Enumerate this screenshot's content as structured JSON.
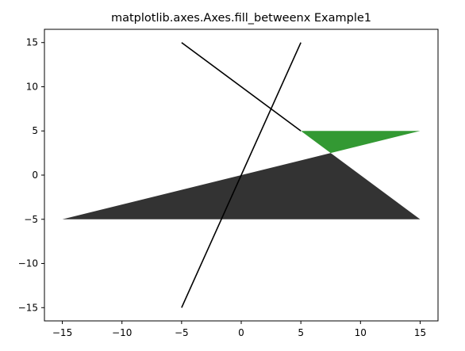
{
  "chart_data": {
    "type": "area",
    "title": "matplotlib.axes.Axes.fill_betweenx Example1",
    "xlabel": "",
    "ylabel": "",
    "xlim": [
      -16.5,
      16.5
    ],
    "ylim": [
      -16.5,
      16.5
    ],
    "grid": false,
    "x_ticks": [
      -15,
      -10,
      -5,
      0,
      5,
      10,
      15
    ],
    "y_ticks": [
      -15,
      -10,
      -5,
      0,
      5,
      10,
      15
    ],
    "x_tick_labels": [
      "−15",
      "−10",
      "−5",
      "0",
      "5",
      "10",
      "15"
    ],
    "y_tick_labels": [
      "−15",
      "−10",
      "−5",
      "0",
      "5",
      "10",
      "15"
    ],
    "lines": [
      {
        "color": "#000000",
        "points": [
          [
            -5,
            -15
          ],
          [
            5,
            15
          ]
        ]
      },
      {
        "color": "#000000",
        "points": [
          [
            -5,
            15
          ],
          [
            5,
            5
          ]
        ]
      }
    ],
    "fills": [
      {
        "color": "#333333",
        "polygon": [
          [
            -15,
            -5
          ],
          [
            7.5,
            2.5
          ],
          [
            15,
            -5
          ]
        ]
      },
      {
        "color": "#339933",
        "polygon": [
          [
            5,
            5
          ],
          [
            15,
            5
          ],
          [
            7.5,
            2.5
          ]
        ]
      }
    ]
  }
}
